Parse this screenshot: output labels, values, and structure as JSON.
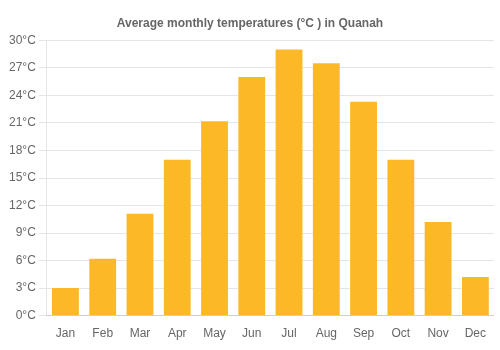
{
  "chart_data": {
    "type": "bar",
    "title": "Average monthly temperatures (°C ) in Quanah",
    "categories": [
      "Jan",
      "Feb",
      "Mar",
      "Apr",
      "May",
      "Jun",
      "Jul",
      "Aug",
      "Sep",
      "Oct",
      "Nov",
      "Dec"
    ],
    "values": [
      3.0,
      6.2,
      11.1,
      17.0,
      21.2,
      26.0,
      29.0,
      27.5,
      23.3,
      17.0,
      10.2,
      4.2
    ],
    "color": "#FDB827",
    "ylim": [
      0,
      30
    ],
    "yticks": [
      {
        "value": 0,
        "label": "0°C"
      },
      {
        "value": 3,
        "label": "3°C"
      },
      {
        "value": 6,
        "label": "6°C"
      },
      {
        "value": 9,
        "label": "9°C"
      },
      {
        "value": 12,
        "label": "12°C"
      },
      {
        "value": 15,
        "label": "15°C"
      },
      {
        "value": 18,
        "label": "18°C"
      },
      {
        "value": 21,
        "label": "21°C"
      },
      {
        "value": 24,
        "label": "24°C"
      },
      {
        "value": 27,
        "label": "27°C"
      },
      {
        "value": 30,
        "label": "30°C"
      }
    ],
    "grid": true
  }
}
